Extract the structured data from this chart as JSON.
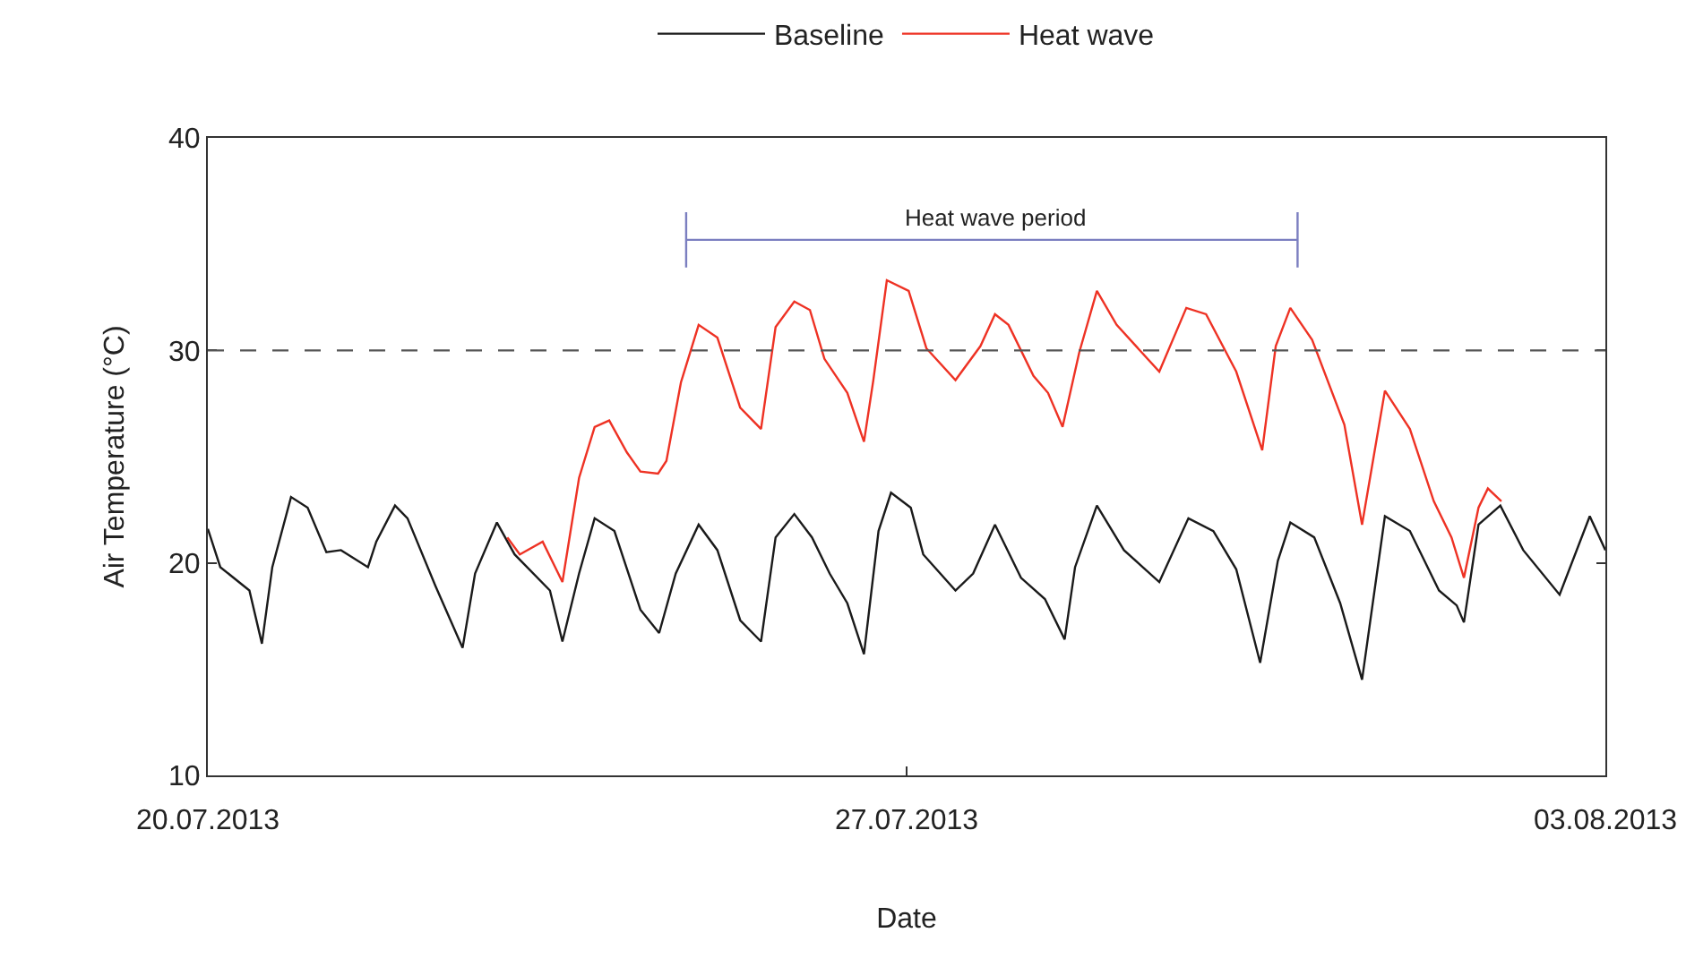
{
  "chart_data": {
    "type": "line",
    "xlabel": "Date",
    "ylabel": "Air Temperature (°C)",
    "x": [
      "2013-07-20T00:00",
      "2013-07-20T03:00",
      "2013-07-20T10:00",
      "2013-07-20T13:00",
      "2013-07-20T15:30",
      "2013-07-20T20:00",
      "2013-07-21T00:00",
      "2013-07-21T04:30",
      "2013-07-21T08:00",
      "2013-07-21T14:30",
      "2013-07-21T16:30",
      "2013-07-21T21:00",
      "2013-07-22T00:00",
      "2013-07-22T06:45",
      "2013-07-22T13:15",
      "2013-07-22T16:15",
      "2013-07-22T21:30",
      "2013-07-23T01:45",
      "2013-07-23T10:15",
      "2013-07-23T13:15",
      "2013-07-23T17:15",
      "2013-07-23T21:00",
      "2013-07-24T01:45",
      "2013-07-24T08:00",
      "2013-07-24T12:30",
      "2013-07-24T16:30",
      "2013-07-24T22:00",
      "2013-07-25T02:30",
      "2013-07-25T08:00",
      "2013-07-25T13:00",
      "2013-07-25T16:30",
      "2013-07-25T21:00",
      "2013-07-26T01:15",
      "2013-07-26T05:30",
      "2013-07-26T09:45",
      "2013-07-26T13:45",
      "2013-07-26T17:15",
      "2013-07-26T20:15",
      "2013-07-27T01:00",
      "2013-07-27T04:00",
      "2013-07-27T11:45",
      "2013-07-27T16:00",
      "2013-07-27T21:15",
      "2013-07-28T03:30",
      "2013-07-28T09:15",
      "2013-07-28T14:00",
      "2013-07-28T16:30",
      "2013-07-28T21:45",
      "2013-07-29T04:15",
      "2013-07-29T12:45",
      "2013-07-29T19:45",
      "2013-07-30T01:45",
      "2013-07-30T07:15",
      "2013-07-30T13:00",
      "2013-07-30T17:15",
      "2013-07-30T20:15",
      "2013-07-31T02:00",
      "2013-07-31T08:15",
      "2013-07-31T13:30",
      "2013-07-31T19:00",
      "2013-08-01T01:00",
      "2013-08-01T08:00",
      "2013-08-01T12:15",
      "2013-08-01T14:00",
      "2013-08-01T17:30",
      "2013-08-01T22:45",
      "2013-08-02T04:15",
      "2013-08-02T13:00",
      "2013-08-02T20:15",
      "2013-08-03T00:00"
    ],
    "series": [
      {
        "name": "Baseline",
        "color": "#1a1a1a",
        "values": [
          21.6,
          19.8,
          18.7,
          16.2,
          19.8,
          23.1,
          22.6,
          20.5,
          20.6,
          19.8,
          21.0,
          22.7,
          22.1,
          18.9,
          16.0,
          19.5,
          21.9,
          20.4,
          18.7,
          16.3,
          19.5,
          22.1,
          21.5,
          17.8,
          16.7,
          19.5,
          21.8,
          20.6,
          17.3,
          16.3,
          21.2,
          22.3,
          21.2,
          19.5,
          18.1,
          15.7,
          21.5,
          23.3,
          22.6,
          20.4,
          18.7,
          19.5,
          21.8,
          19.3,
          18.3,
          16.4,
          19.8,
          22.7,
          20.6,
          19.1,
          22.1,
          21.5,
          19.7,
          15.3,
          20.1,
          21.9,
          21.2,
          18.1,
          14.5,
          22.2,
          21.5,
          18.7,
          18.0,
          17.2,
          21.8,
          22.7,
          20.6,
          18.5,
          22.2,
          20.6
        ]
      },
      {
        "color": "#7b7fc0",
        "x": [
          "2013-07-24T19:00",
          "2013-07-24T19:00",
          "2013-07-24T19:00",
          "2013-07-30T22:00",
          "2013-07-30T22:00",
          "2013-07-30T22:00"
        ],
        "values": [
          36.5,
          33.9,
          35.2,
          35.2,
          36.5,
          33.9
        ]
      },
      {
        "name": "Heat wave",
        "color": "#ee3224",
        "x": [
          "2013-07-23T00:00",
          "2013-07-23T03:00",
          "2013-07-23T08:30",
          "2013-07-23T13:15",
          "2013-07-23T17:15",
          "2013-07-23T21:00",
          "2013-07-24T00:30",
          "2013-07-24T04:45",
          "2013-07-24T08:00",
          "2013-07-24T12:15",
          "2013-07-24T14:15",
          "2013-07-24T17:45",
          "2013-07-24T22:00",
          "2013-07-25T02:30",
          "2013-07-25T08:00",
          "2013-07-25T13:00",
          "2013-07-25T16:30",
          "2013-07-25T21:00",
          "2013-07-26T00:45",
          "2013-07-26T04:15",
          "2013-07-26T09:45",
          "2013-07-26T13:45",
          "2013-07-26T16:00",
          "2013-07-26T19:15",
          "2013-07-27T00:30",
          "2013-07-27T04:45",
          "2013-07-27T11:45",
          "2013-07-27T17:45",
          "2013-07-27T21:15",
          "2013-07-28T00:30",
          "2013-07-28T06:30",
          "2013-07-28T10:00",
          "2013-07-28T13:30",
          "2013-07-28T17:30",
          "2013-07-28T21:45",
          "2013-07-29T02:30",
          "2013-07-29T12:45",
          "2013-07-29T19:15",
          "2013-07-30T00:00",
          "2013-07-30T07:15",
          "2013-07-30T13:30",
          "2013-07-30T16:45",
          "2013-07-30T20:15",
          "2013-07-31T01:30",
          "2013-07-31T09:15",
          "2013-07-31T13:30",
          "2013-07-31T19:00",
          "2013-08-01T01:00",
          "2013-08-01T06:45",
          "2013-08-01T11:00",
          "2013-08-01T14:00",
          "2013-08-01T17:30",
          "2013-08-01T19:45",
          "2013-08-01T23:00"
        ],
        "values": [
          21.2,
          20.4,
          21.0,
          19.1,
          24.0,
          26.4,
          26.7,
          25.2,
          24.3,
          24.2,
          24.8,
          28.5,
          31.2,
          30.6,
          27.3,
          26.3,
          31.1,
          32.3,
          31.9,
          29.6,
          28.0,
          25.7,
          28.6,
          33.3,
          32.8,
          30.1,
          28.6,
          30.2,
          31.7,
          31.2,
          28.8,
          28.0,
          26.4,
          29.9,
          32.8,
          31.2,
          29.0,
          32.0,
          31.7,
          29.0,
          25.3,
          30.2,
          32.0,
          30.5,
          26.5,
          21.8,
          28.1,
          26.3,
          22.9,
          21.2,
          19.3,
          22.6,
          23.5,
          22.9
        ]
      }
    ],
    "xlim": [
      "2013-07-20T00:00",
      "2013-08-03T00:00"
    ],
    "xticks": [
      {
        "value": "2013-07-20",
        "label": "20.07.2013"
      },
      {
        "value": "2013-07-27",
        "label": "27.07.2013"
      },
      {
        "value": "2013-08-03",
        "label": "03.08.2013"
      }
    ],
    "ylim": [
      10,
      40
    ],
    "yticks": [
      10,
      20,
      30,
      40
    ],
    "ref_lines": [
      {
        "axis": "y",
        "value": 30,
        "color": "#555555",
        "line_style": "dashed"
      }
    ],
    "annotations": [
      "Heat wave period"
    ],
    "legend": "top",
    "marker": "none",
    "line_style": "solid"
  }
}
